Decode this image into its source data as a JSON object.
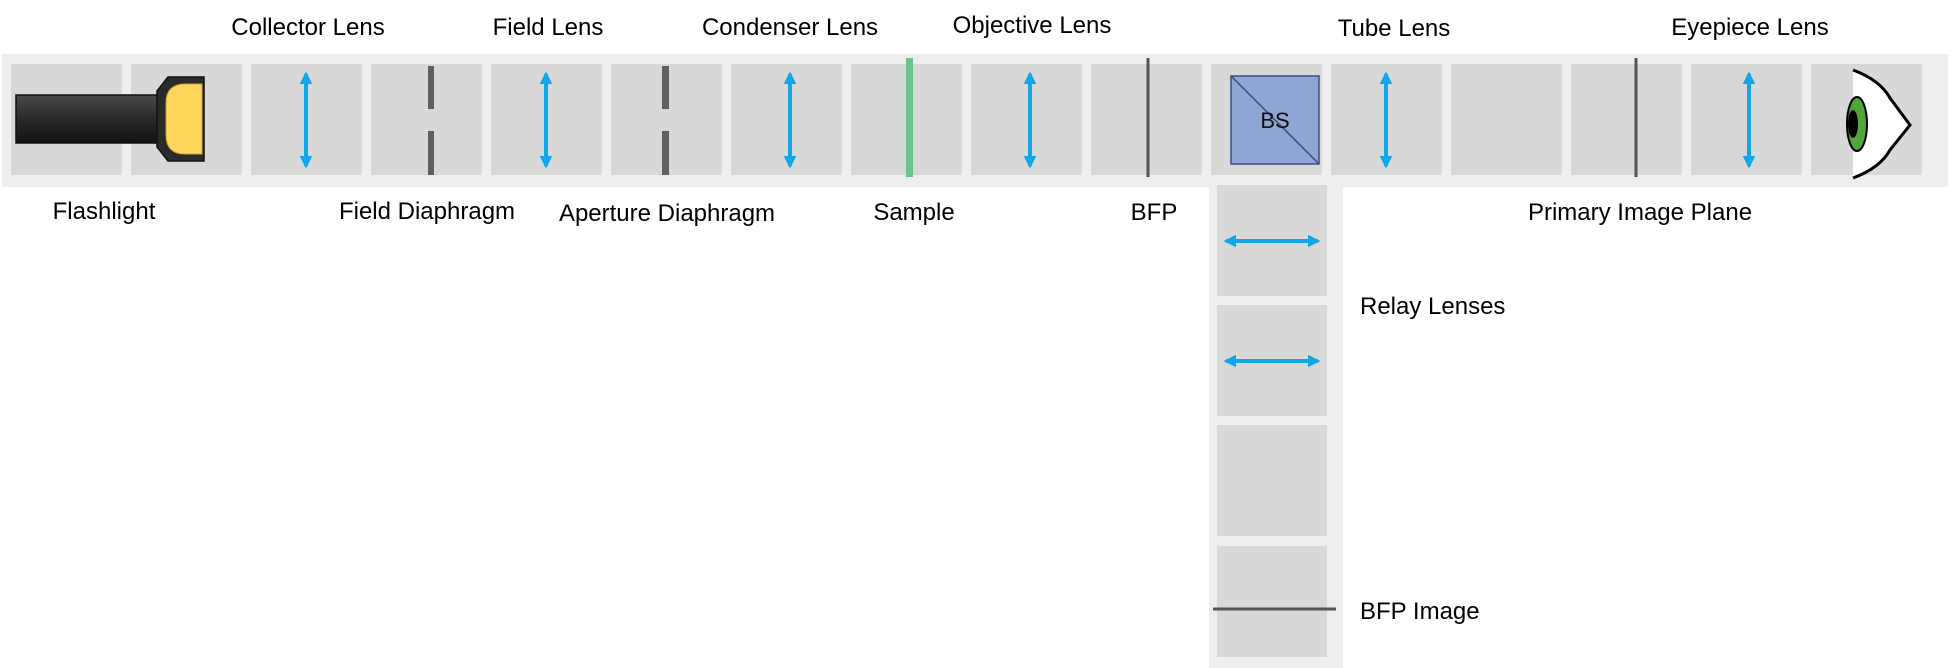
{
  "labels": {
    "collector_lens": "Collector Lens",
    "field_lens": "Field Lens",
    "condenser_lens": "Condenser Lens",
    "objective_lens": "Objective Lens",
    "tube_lens": "Tube Lens",
    "eyepiece_lens": "Eyepiece Lens",
    "flashlight": "Flashlight",
    "field_diaphragm": "Field Diaphragm",
    "aperture_diaphragm": "Aperture Diaphragm",
    "sample": "Sample",
    "bfp": "BFP",
    "primary_image_plane": "Primary Image Plane",
    "relay_lenses": "Relay Lenses",
    "bfp_image": "BFP Image",
    "beam_splitter": "BS"
  },
  "colors": {
    "rail": "#eeeeee",
    "cell": "#d9d8d9",
    "lens_arrow": "#12a7e8",
    "diaphragm": "#606060",
    "plane_line": "#555555",
    "sample_slide": "#6cc48c",
    "beam_splitter": "#8fa6d4",
    "beam_splitter_border": "#3b4f86",
    "flashlight_body": "#2c2c2c",
    "flashlight_bulb": "#ffd55a",
    "eye_iris": "#4fa63a"
  },
  "icons": {
    "lens": "double-arrow-lens-icon",
    "light_source": "flashlight-icon",
    "observer": "eye-icon"
  }
}
